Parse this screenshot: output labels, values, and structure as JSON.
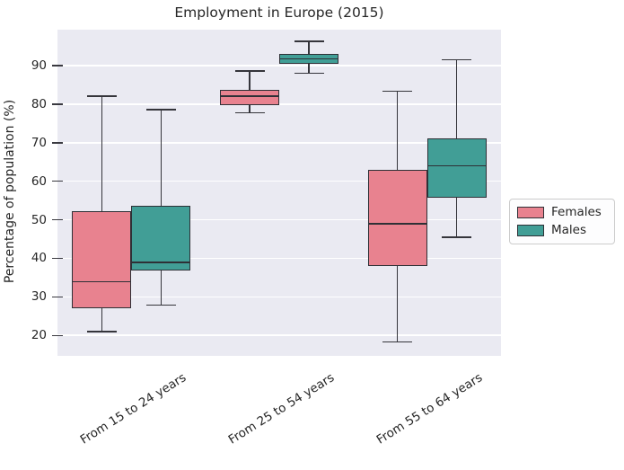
{
  "chart_data": {
    "type": "boxplot",
    "title": "Employment in Europe (2015)",
    "ylabel": "Percentage of population (%)",
    "xlabel": "",
    "categories": [
      "From 15 to 24 years",
      "From 25 to 54 years",
      "From 55 to 64 years"
    ],
    "yticks": [
      20,
      30,
      40,
      50,
      60,
      70,
      80,
      90
    ],
    "ylim": [
      14.7,
      99.3
    ],
    "grid": true,
    "legend_position": "right-outside",
    "series": [
      {
        "name": "Females",
        "color": "#e8828f",
        "boxes": [
          {
            "whislo": 21.0,
            "q1": 27.0,
            "med": 33.9,
            "q3": 52.3,
            "whishi": 82.0
          },
          {
            "whislo": 77.8,
            "q1": 79.7,
            "med": 82.1,
            "q3": 83.8,
            "whishi": 88.6
          },
          {
            "whislo": 18.3,
            "q1": 38.0,
            "med": 49.0,
            "q3": 62.9,
            "whishi": 83.3
          }
        ]
      },
      {
        "name": "Males",
        "color": "#419e96",
        "boxes": [
          {
            "whislo": 27.9,
            "q1": 36.9,
            "med": 39.0,
            "q3": 53.7,
            "whishi": 78.5
          },
          {
            "whislo": 88.0,
            "q1": 90.5,
            "med": 91.7,
            "q3": 93.1,
            "whishi": 96.3
          },
          {
            "whislo": 45.5,
            "q1": 55.8,
            "med": 64.0,
            "q3": 71.0,
            "whishi": 91.5
          }
        ]
      }
    ],
    "colors": {
      "axes_background": "#eaeaf2",
      "gridline": "#ffffff",
      "box_edge": "#2e3036",
      "text": "#262626"
    }
  }
}
